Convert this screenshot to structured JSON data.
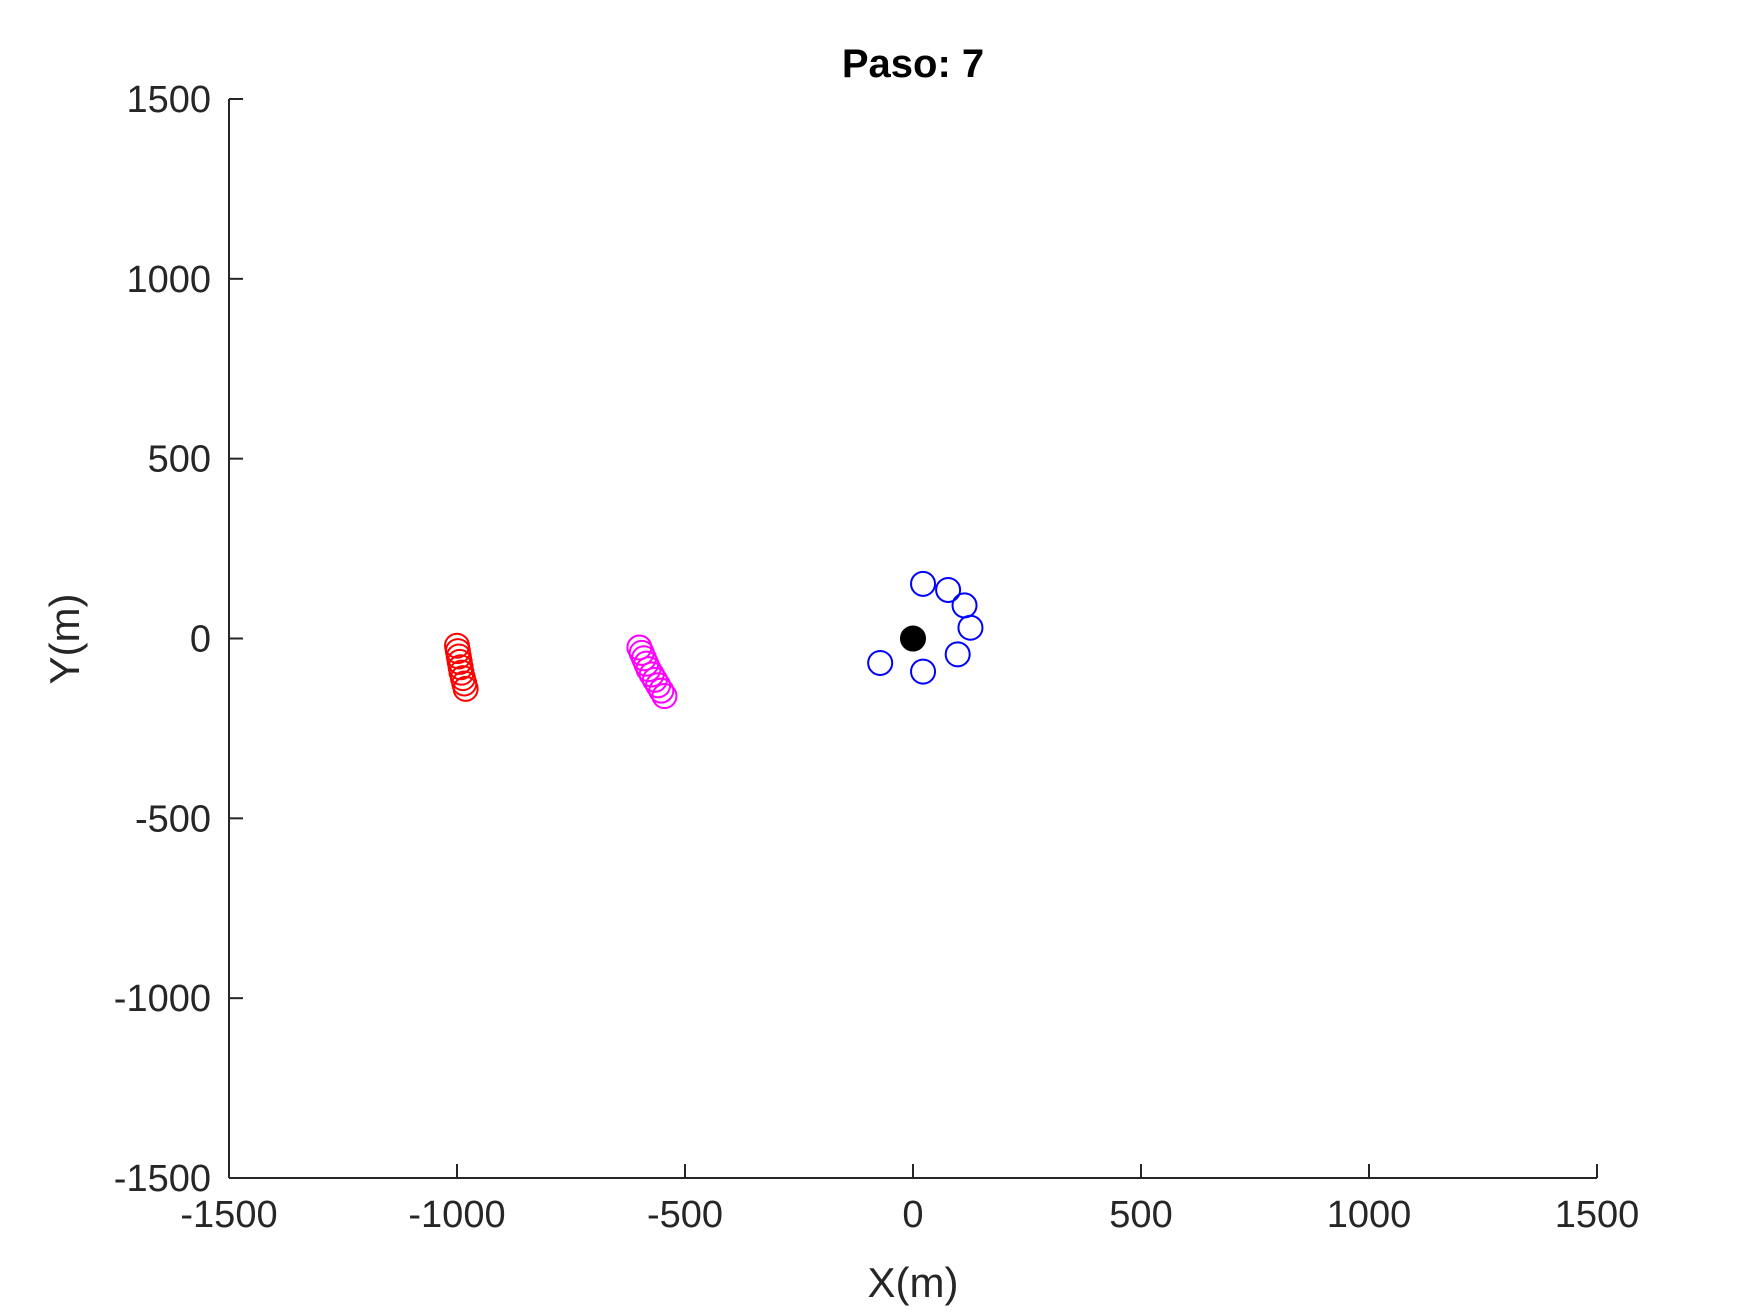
{
  "chart_data": {
    "type": "scatter",
    "title": "Paso: 7",
    "xlabel": "X(m)",
    "ylabel": "Y(m)",
    "xlim": [
      -1500,
      1500
    ],
    "ylim": [
      -1500,
      1500
    ],
    "xticks": [
      -1500,
      -1000,
      -500,
      0,
      500,
      1000,
      1500
    ],
    "yticks": [
      -1500,
      -1000,
      -500,
      0,
      500,
      1000,
      1500
    ],
    "xtick_labels": [
      "-1500",
      "-1000",
      "-500",
      "0",
      "500",
      "1000",
      "1500"
    ],
    "ytick_labels": [
      "-1500",
      "-1000",
      "-500",
      "0",
      "500",
      "1000",
      "1500"
    ],
    "grid": false,
    "series": [
      {
        "color": "#ff0000",
        "marker": "open-circle",
        "points": [
          [
            -1000,
            -20
          ],
          [
            -998,
            -35
          ],
          [
            -996,
            -50
          ],
          [
            -994,
            -65
          ],
          [
            -992,
            -80
          ],
          [
            -990,
            -95
          ],
          [
            -987,
            -110
          ],
          [
            -984,
            -125
          ],
          [
            -981,
            -140
          ]
        ]
      },
      {
        "color": "#ff00ff",
        "marker": "open-circle",
        "points": [
          [
            -600,
            -25
          ],
          [
            -595,
            -40
          ],
          [
            -590,
            -55
          ],
          [
            -585,
            -70
          ],
          [
            -580,
            -85
          ],
          [
            -573,
            -100
          ],
          [
            -566,
            -115
          ],
          [
            -559,
            -130
          ],
          [
            -552,
            -145
          ],
          [
            -545,
            -160
          ]
        ]
      },
      {
        "color": "#0000ff",
        "marker": "open-circle",
        "points": [
          [
            22,
            152
          ],
          [
            77,
            135
          ],
          [
            113,
            92
          ],
          [
            126,
            30
          ],
          [
            98,
            -44
          ],
          [
            22,
            -92
          ],
          [
            -72,
            -68
          ]
        ]
      },
      {
        "color": "#000000",
        "marker": "filled-circle",
        "points": [
          [
            0,
            0
          ]
        ]
      }
    ]
  }
}
